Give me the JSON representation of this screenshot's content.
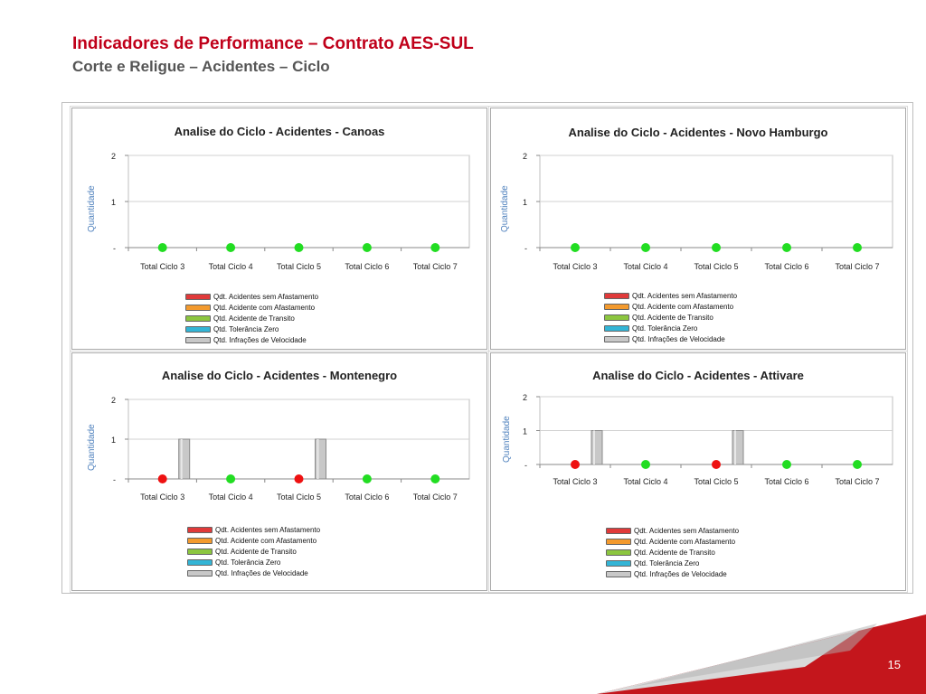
{
  "header": {
    "title": "Indicadores de Performance – Contrato AES-SUL",
    "subtitle": "Corte e Religue – Acidentes – Ciclo"
  },
  "page_number": "15",
  "legend": [
    {
      "label": "Qdt. Acidentes sem Afastamento",
      "color": "#e03a3a"
    },
    {
      "label": "Qtd. Acidente com Afastamento",
      "color": "#f39a2e"
    },
    {
      "label": "Qtd. Acidente de Transito",
      "color": "#8cc63f"
    },
    {
      "label": "Qtd. Tolerância Zero",
      "color": "#33b5d6"
    },
    {
      "label": "Qtd. Infrações de Velocidade",
      "color": "#c8c8c8"
    }
  ],
  "colors": {
    "accent": "#c0001a",
    "marker_zero": "#22dd22",
    "marker_red": "#ee1111",
    "bar_gray": "#c8c8c8"
  },
  "chart_data": [
    {
      "type": "bar",
      "title": "Analise do Ciclo - Acidentes - Canoas",
      "ylabel": "Quantidade",
      "categories": [
        "Total Ciclo 3",
        "Total Ciclo 4",
        "Total Ciclo 5",
        "Total Ciclo 6",
        "Total Ciclo 7"
      ],
      "yticks": [
        "2",
        "1",
        "-"
      ],
      "ylim": [
        0,
        2
      ],
      "series": [
        {
          "name": "Qdt. Acidentes sem Afastamento",
          "values": [
            0,
            0,
            0,
            0,
            0
          ]
        },
        {
          "name": "Qtd. Acidente com Afastamento",
          "values": [
            0,
            0,
            0,
            0,
            0
          ]
        },
        {
          "name": "Qtd. Acidente de Transito",
          "values": [
            0,
            0,
            0,
            0,
            0
          ]
        },
        {
          "name": "Qtd. Tolerância Zero",
          "values": [
            0,
            0,
            0,
            0,
            0
          ]
        },
        {
          "name": "Qtd. Infrações de Velocidade",
          "values": [
            0,
            0,
            0,
            0,
            0
          ]
        }
      ],
      "markers": [
        "green",
        "green",
        "green",
        "green",
        "green"
      ]
    },
    {
      "type": "bar",
      "title": "Analise do Ciclo - Acidentes - Novo Hamburgo",
      "ylabel": "Quantidade",
      "categories": [
        "Total Ciclo 3",
        "Total Ciclo 4",
        "Total Ciclo 5",
        "Total Ciclo 6",
        "Total Ciclo 7"
      ],
      "yticks": [
        "2",
        "1",
        "-"
      ],
      "ylim": [
        0,
        2
      ],
      "series": [
        {
          "name": "Qdt. Acidentes sem Afastamento",
          "values": [
            0,
            0,
            0,
            0,
            0
          ]
        },
        {
          "name": "Qtd. Acidente com Afastamento",
          "values": [
            0,
            0,
            0,
            0,
            0
          ]
        },
        {
          "name": "Qtd. Acidente de Transito",
          "values": [
            0,
            0,
            0,
            0,
            0
          ]
        },
        {
          "name": "Qtd. Tolerância Zero",
          "values": [
            0,
            0,
            0,
            0,
            0
          ]
        },
        {
          "name": "Qtd. Infrações de Velocidade",
          "values": [
            0,
            0,
            0,
            0,
            0
          ]
        }
      ],
      "markers": [
        "green",
        "green",
        "green",
        "green",
        "green"
      ]
    },
    {
      "type": "bar",
      "title": "Analise do Ciclo - Acidentes - Montenegro",
      "ylabel": "Quantidade",
      "categories": [
        "Total Ciclo 3",
        "Total Ciclo 4",
        "Total Ciclo 5",
        "Total Ciclo 6",
        "Total Ciclo 7"
      ],
      "yticks": [
        "2",
        "1",
        "-"
      ],
      "ylim": [
        0,
        2
      ],
      "series": [
        {
          "name": "Qdt. Acidentes sem Afastamento",
          "values": [
            0,
            0,
            0,
            0,
            0
          ]
        },
        {
          "name": "Qtd. Acidente com Afastamento",
          "values": [
            0,
            0,
            0,
            0,
            0
          ]
        },
        {
          "name": "Qtd. Acidente de Transito",
          "values": [
            0,
            0,
            0,
            0,
            0
          ]
        },
        {
          "name": "Qtd. Tolerância Zero",
          "values": [
            0,
            0,
            0,
            0,
            0
          ]
        },
        {
          "name": "Qtd. Infrações de Velocidade",
          "values": [
            1,
            0,
            1,
            0,
            0
          ]
        }
      ],
      "markers": [
        "red",
        "green",
        "red",
        "green",
        "green"
      ]
    },
    {
      "type": "bar",
      "title": "Analise do Ciclo - Acidentes - Attivare",
      "ylabel": "Quantidade",
      "categories": [
        "Total Ciclo 3",
        "Total Ciclo 4",
        "Total Ciclo 5",
        "Total Ciclo 6",
        "Total Ciclo 7"
      ],
      "yticks": [
        "2",
        "1",
        "-"
      ],
      "ylim": [
        0,
        2
      ],
      "series": [
        {
          "name": "Qdt. Acidentes sem Afastamento",
          "values": [
            0,
            0,
            0,
            0,
            0
          ]
        },
        {
          "name": "Qtd. Acidente com Afastamento",
          "values": [
            0,
            0,
            0,
            0,
            0
          ]
        },
        {
          "name": "Qtd. Acidente de Transito",
          "values": [
            0,
            0,
            0,
            0,
            0
          ]
        },
        {
          "name": "Qtd. Tolerância Zero",
          "values": [
            0,
            0,
            0,
            0,
            0
          ]
        },
        {
          "name": "Qtd. Infrações de Velocidade",
          "values": [
            1,
            0,
            1,
            0,
            0
          ]
        }
      ],
      "markers": [
        "red",
        "green",
        "red",
        "green",
        "green"
      ]
    }
  ]
}
